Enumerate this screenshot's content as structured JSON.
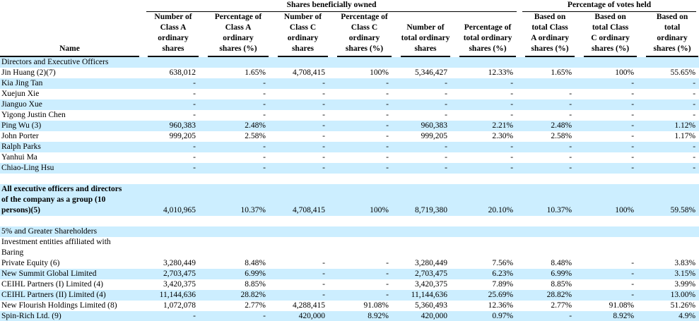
{
  "table": {
    "header": {
      "groups": [
        {
          "label": "Shares beneficially owned",
          "span": 6
        },
        {
          "label": "Percentage of votes held",
          "span": 3
        }
      ],
      "name_column": "Name",
      "columns": [
        "Number of\nClass A\nordinary\nshares",
        "Percentage of\nClass A\nordinary\nshares (%)",
        "Number of\nClass C\nordinary\nshares",
        "Percentage of\nClass C\nordinary\nshares (%)",
        "Number of\ntotal ordinary\nshares",
        "Percentage of\ntotal ordinary\nshares (%)",
        "Based on\ntotal Class\nA ordinary\nshares (%)",
        "Based on\ntotal Class\nC ordinary\nshares (%)",
        "Based on\ntotal\nordinary\nshares (%)"
      ]
    },
    "colors": {
      "row_highlight": "#CCEEFF",
      "text": "#000000",
      "rule": "#000000"
    },
    "rows": [
      {
        "type": "section",
        "name": "Directors and Executive Officers",
        "bg": "blue"
      },
      {
        "type": "data",
        "name": "Jin Huang (2)(7)",
        "bg": "white",
        "values": [
          "638,012",
          "1.65%",
          "4,708,415",
          "100%",
          "5,346,427",
          "12.33%",
          "1.65%",
          "100%",
          "55.65%"
        ]
      },
      {
        "type": "data",
        "name": "Kia Jing Tan",
        "bg": "blue",
        "values": [
          "-",
          "-",
          "-",
          "-",
          "-",
          "-",
          "",
          "-",
          "-"
        ]
      },
      {
        "type": "data",
        "name": "Xuejun Xie",
        "bg": "white",
        "values": [
          "-",
          "-",
          "-",
          "-",
          "-",
          "-",
          "-",
          "-",
          "-"
        ]
      },
      {
        "type": "data",
        "name": "Jianguo Xue",
        "bg": "blue",
        "values": [
          "-",
          "-",
          "-",
          "-",
          "-",
          "-",
          "-",
          "-",
          "-"
        ]
      },
      {
        "type": "data",
        "name": "Yigong Justin Chen",
        "bg": "white",
        "values": [
          "-",
          "-",
          "-",
          "-",
          "-",
          "-",
          "-",
          "-",
          "-"
        ]
      },
      {
        "type": "data",
        "name": "Ping Wu (3)",
        "bg": "blue",
        "values": [
          "960,383",
          "2.48%",
          "-",
          "-",
          "960,383",
          "2.21%",
          "2.48%",
          "-",
          "1.12%"
        ]
      },
      {
        "type": "data",
        "name": "John Porter",
        "bg": "white",
        "values": [
          "999,205",
          "2.58%",
          "-",
          "-",
          "999,205",
          "2.30%",
          "2.58%",
          "-",
          "1.17%"
        ]
      },
      {
        "type": "data",
        "name": "Ralph Parks",
        "bg": "blue",
        "values": [
          "-",
          "-",
          "-",
          "-",
          "-",
          "-",
          "-",
          "-",
          "-"
        ]
      },
      {
        "type": "data",
        "name": "Yanhui Ma",
        "bg": "white",
        "values": [
          "-",
          "-",
          "-",
          "-",
          "-",
          "-",
          "-",
          "-",
          "-"
        ]
      },
      {
        "type": "data",
        "name": "Chiao-Ling Hsu",
        "bg": "blue",
        "values": [
          "-",
          "-",
          "-",
          "-",
          "-",
          "-",
          "-",
          "-",
          "-"
        ]
      },
      {
        "type": "spacer"
      },
      {
        "type": "data",
        "bold": true,
        "bg": "blue",
        "name": "All executive officers and directors\nof the company as a group (10\npersons)(5)",
        "values": [
          "4,010,965",
          "10.37%",
          "4,708,415",
          "100%",
          "8,719,380",
          "20.10%",
          "10.37%",
          "100%",
          "59.58%"
        ]
      },
      {
        "type": "spacer"
      },
      {
        "type": "section",
        "name": "5% and Greater Shareholders",
        "bg": "blue"
      },
      {
        "type": "data",
        "bg": "white",
        "name": "Investment entities affiliated with\nBaring\nPrivate Equity  (6)",
        "values": [
          "3,280,449",
          "8.48%",
          "-",
          "-",
          "3,280,449",
          "7.56%",
          "8.48%",
          "-",
          "3.83%"
        ]
      },
      {
        "type": "data",
        "name": "New Summit Global Limited",
        "bg": "blue",
        "values": [
          "2,703,475",
          "6.99%",
          "-",
          "-",
          "2,703,475",
          "6.23%",
          "6.99%",
          "-",
          "3.15%"
        ]
      },
      {
        "type": "data",
        "name": "CEIHL Partners (I) Limited (4)",
        "bg": "white",
        "values": [
          "3,420,375",
          "8.85%",
          "-",
          "-",
          "3,420,375",
          "7.89%",
          "8.85%",
          "-",
          "3.99%"
        ]
      },
      {
        "type": "data",
        "name": "CEIHL Partners (II) Limited (4)",
        "bg": "blue",
        "values": [
          "11,144,636",
          "28.82%",
          "-",
          "-",
          "11,144,636",
          "25.69%",
          "28.82%",
          "-",
          "13.00%"
        ]
      },
      {
        "type": "data",
        "name": "New Flourish Holdings Limited (8)",
        "bg": "white",
        "values": [
          "1,072,078",
          "2.77%",
          "4,288,415",
          "91.08%",
          "5,360,493",
          "12.36%",
          "2.77%",
          "91.08%",
          "51.26%"
        ]
      },
      {
        "type": "data",
        "name": "Spin-Rich Ltd. (9)",
        "bg": "blue",
        "values": [
          "-",
          "-",
          "420,000",
          "8.92%",
          "420,000",
          "0.97%",
          "-",
          "8.92%",
          "4.9%"
        ]
      }
    ]
  }
}
